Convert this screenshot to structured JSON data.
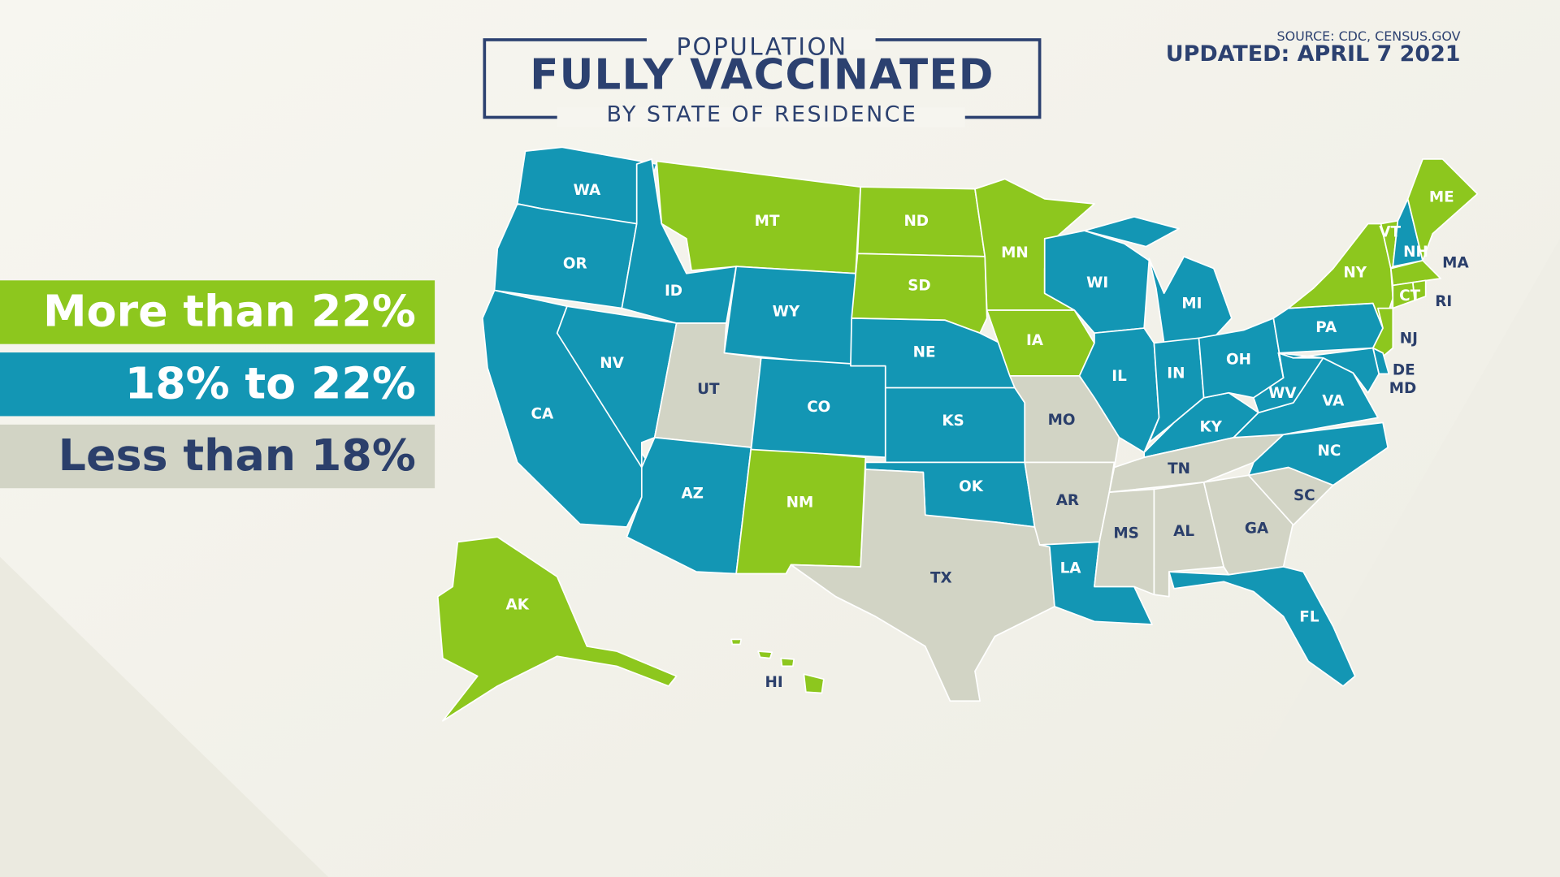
{
  "header": {
    "kicker": "POPULATION",
    "title": "FULLY VACCINATED",
    "subtitle": "BY STATE OF RESIDENCE",
    "source": "SOURCE: CDC, CENSUS.GOV",
    "updated": "UPDATED: APRIL 7 2021"
  },
  "legend": [
    {
      "label": "More than 22%",
      "color": "#8dc71e",
      "text_color": "#ffffff"
    },
    {
      "label": "18% to 22%",
      "color": "#1396b4",
      "text_color": "#ffffff"
    },
    {
      "label": "Less than 18%",
      "color": "#d2d4c5",
      "text_color": "#2b3f6b"
    }
  ],
  "states": [
    {
      "label": "WA",
      "group": 1
    },
    {
      "label": "OR",
      "group": 1
    },
    {
      "label": "CA",
      "group": 1
    },
    {
      "label": "NV",
      "group": 1
    },
    {
      "label": "ID",
      "group": 1
    },
    {
      "label": "MT",
      "group": 0
    },
    {
      "label": "WY",
      "group": 1
    },
    {
      "label": "UT",
      "group": 2
    },
    {
      "label": "AZ",
      "group": 1
    },
    {
      "label": "NM",
      "group": 0
    },
    {
      "label": "CO",
      "group": 1
    },
    {
      "label": "ND",
      "group": 0
    },
    {
      "label": "SD",
      "group": 0
    },
    {
      "label": "NE",
      "group": 1
    },
    {
      "label": "KS",
      "group": 1
    },
    {
      "label": "OK",
      "group": 1
    },
    {
      "label": "TX",
      "group": 2
    },
    {
      "label": "MN",
      "group": 0
    },
    {
      "label": "IA",
      "group": 0
    },
    {
      "label": "MO",
      "group": 2
    },
    {
      "label": "AR",
      "group": 2
    },
    {
      "label": "LA",
      "group": 1
    },
    {
      "label": "WI",
      "group": 1
    },
    {
      "label": "IL",
      "group": 1
    },
    {
      "label": "MS",
      "group": 2
    },
    {
      "label": "MI",
      "group": 1
    },
    {
      "label": "IN",
      "group": 1
    },
    {
      "label": "KY",
      "group": 1
    },
    {
      "label": "TN",
      "group": 2
    },
    {
      "label": "AL",
      "group": 2
    },
    {
      "label": "OH",
      "group": 1
    },
    {
      "label": "GA",
      "group": 2
    },
    {
      "label": "FL",
      "group": 1
    },
    {
      "label": "SC",
      "group": 2
    },
    {
      "label": "NC",
      "group": 1
    },
    {
      "label": "VA",
      "group": 1
    },
    {
      "label": "WV",
      "group": 1
    },
    {
      "label": "PA",
      "group": 1
    },
    {
      "label": "NY",
      "group": 0
    },
    {
      "label": "VT",
      "group": 0
    },
    {
      "label": "NH",
      "group": 1
    },
    {
      "label": "ME",
      "group": 0
    },
    {
      "label": "MA",
      "group": 0
    },
    {
      "label": "RI",
      "group": 0
    },
    {
      "label": "CT",
      "group": 0
    },
    {
      "label": "NJ",
      "group": 0
    },
    {
      "label": "DE",
      "group": 1
    },
    {
      "label": "MD",
      "group": 1
    },
    {
      "label": "AK",
      "group": 0
    },
    {
      "label": "HI",
      "group": 0
    }
  ]
}
